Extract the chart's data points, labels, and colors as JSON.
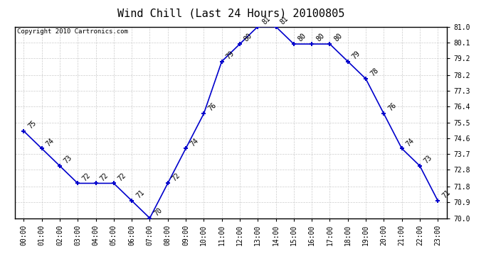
{
  "title": "Wind Chill (Last 24 Hours) 20100805",
  "copyright": "Copyright 2010 Cartronics.com",
  "hours": [
    "00:00",
    "01:00",
    "02:00",
    "03:00",
    "04:00",
    "05:00",
    "06:00",
    "07:00",
    "08:00",
    "09:00",
    "10:00",
    "11:00",
    "12:00",
    "13:00",
    "14:00",
    "15:00",
    "16:00",
    "17:00",
    "18:00",
    "19:00",
    "20:00",
    "21:00",
    "22:00",
    "23:00"
  ],
  "values": [
    75,
    74,
    73,
    72,
    72,
    72,
    71,
    70,
    72,
    74,
    76,
    79,
    80,
    81,
    81,
    80,
    80,
    80,
    79,
    78,
    76,
    74,
    73,
    71
  ],
  "ylim_min": 70.0,
  "ylim_max": 81.0,
  "yticks": [
    70.0,
    70.9,
    71.8,
    72.8,
    73.7,
    74.6,
    75.5,
    76.4,
    77.3,
    78.2,
    79.2,
    80.1,
    81.0
  ],
  "line_color": "#0000cc",
  "marker": "+",
  "marker_size": 5,
  "marker_color": "#0000cc",
  "grid_color": "#cccccc",
  "background_color": "#ffffff",
  "title_fontsize": 11,
  "label_fontsize": 7,
  "annotation_fontsize": 7,
  "copyright_fontsize": 6.5
}
